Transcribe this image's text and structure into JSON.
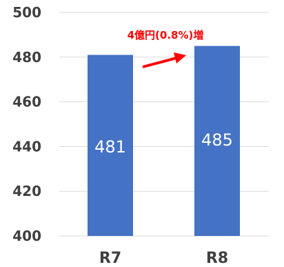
{
  "chart_data": {
    "type": "bar",
    "categories": [
      "R7",
      "R8"
    ],
    "values": [
      481,
      485
    ],
    "data_labels": [
      "481",
      "485"
    ],
    "ylim": [
      400,
      500
    ],
    "yticks": [
      "400",
      "420",
      "440",
      "460",
      "480",
      "500"
    ],
    "grid": true,
    "bar_color": "#4472C4",
    "annotation": {
      "text": "4億円(0.8%)増",
      "color": "#FF0000"
    }
  }
}
